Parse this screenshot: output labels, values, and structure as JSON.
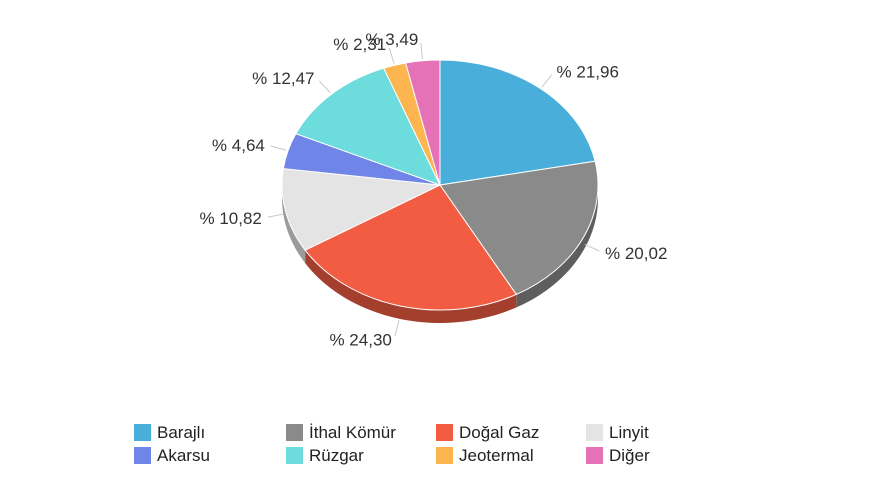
{
  "chart_data": {
    "type": "pie",
    "categories": [
      "Barajlı",
      "İthal Kömür",
      "Doğal Gaz",
      "Linyit",
      "Akarsu",
      "Rüzgar",
      "Jeotermal",
      "Diğer"
    ],
    "values": [
      21.96,
      20.02,
      24.3,
      10.82,
      4.64,
      12.47,
      2.31,
      3.49
    ],
    "data_labels": [
      "% 21,96",
      "% 20,02",
      "% 24,30",
      "% 10,82",
      "% 4,64",
      "% 12,47",
      "% 2,31",
      "% 3,49"
    ],
    "colors": [
      "#4aaedb",
      "#8a8a8a",
      "#f25c42",
      "#e4e4e4",
      "#6f86e8",
      "#6ddcdc",
      "#fdb54f",
      "#e572b6"
    ],
    "title": "",
    "legend_position": "bottom",
    "style": "3d-tilted"
  },
  "legend": {
    "items": [
      {
        "label": "Barajlı",
        "color": "#4aaedb"
      },
      {
        "label": "İthal Kömür",
        "color": "#8a8a8a"
      },
      {
        "label": "Doğal Gaz",
        "color": "#f25c42"
      },
      {
        "label": "Linyit",
        "color": "#e4e4e4"
      },
      {
        "label": "Akarsu",
        "color": "#6f86e8"
      },
      {
        "label": "Rüzgar",
        "color": "#6ddcdc"
      },
      {
        "label": "Jeotermal",
        "color": "#fdb54f"
      },
      {
        "label": "Diğer",
        "color": "#e572b6"
      }
    ]
  }
}
